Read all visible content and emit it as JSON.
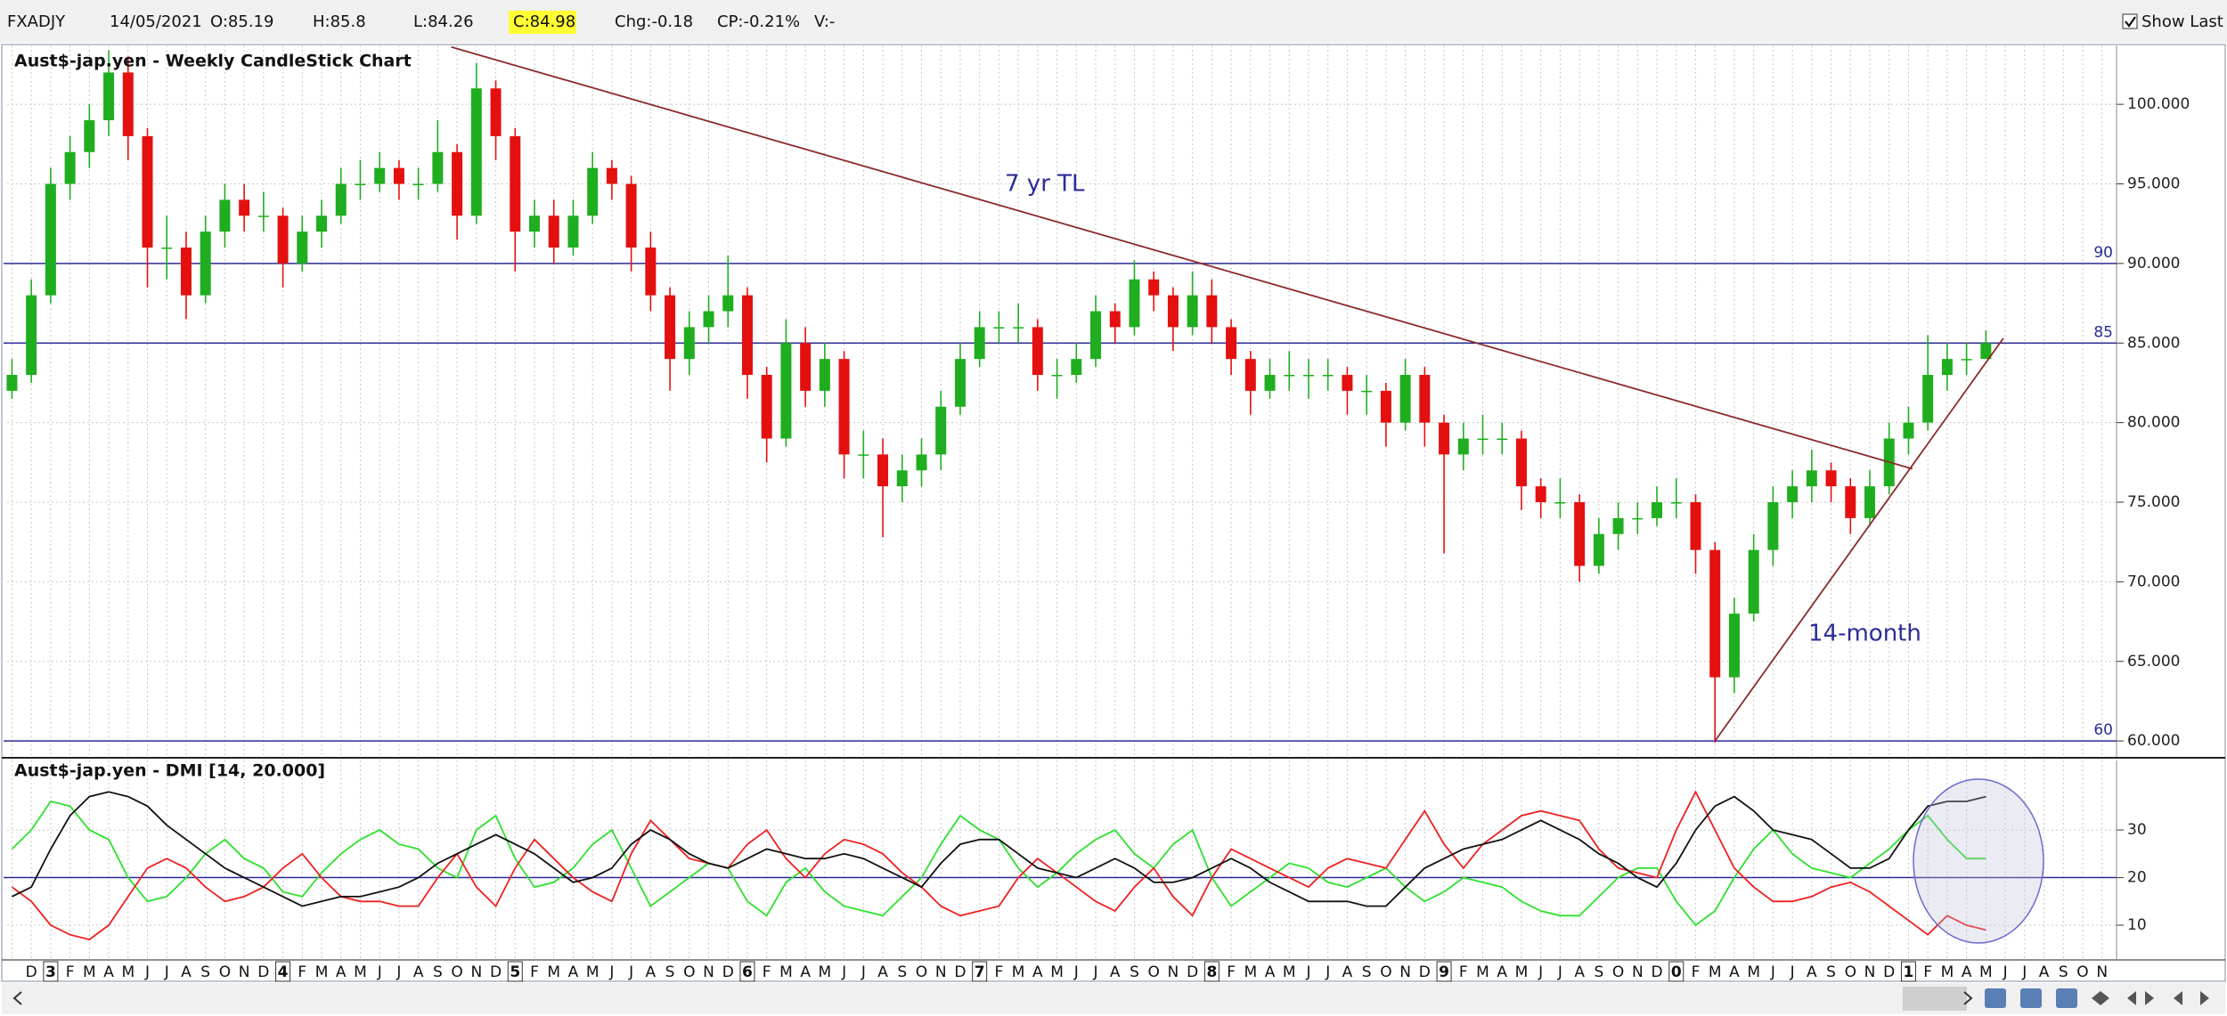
{
  "toolbar": {
    "symbol": "FXADJY",
    "date": "14/05/2021",
    "open": "O:85.19",
    "high": "H:85.8",
    "low": "L:84.26",
    "close": "C:84.98",
    "change": "Chg:-0.18",
    "change_pct": "CP:-0.21%",
    "volume": "V:-",
    "show_last": "Show Last"
  },
  "x_axis": {
    "categories": [
      null,
      "D",
      "3",
      "F",
      "M",
      "A",
      "M",
      "J",
      "J",
      "A",
      "S",
      "O",
      "N",
      "D",
      "4",
      "F",
      "M",
      "A",
      "M",
      "J",
      "J",
      "A",
      "S",
      "O",
      "N",
      "D",
      "5",
      "F",
      "M",
      "A",
      "M",
      "J",
      "J",
      "A",
      "S",
      "O",
      "N",
      "D",
      "6",
      "F",
      "M",
      "A",
      "M",
      "J",
      "J",
      "A",
      "S",
      "O",
      "N",
      "D",
      "7",
      "F",
      "M",
      "A",
      "M",
      "J",
      "J",
      "A",
      "S",
      "O",
      "N",
      "D",
      "8",
      "F",
      "M",
      "A",
      "M",
      "J",
      "J",
      "A",
      "S",
      "O",
      "N",
      "D",
      "9",
      "F",
      "M",
      "A",
      "M",
      "J",
      "J",
      "A",
      "S",
      "O",
      "N",
      "D",
      "0",
      "F",
      "M",
      "A",
      "M",
      "J",
      "J",
      "A",
      "S",
      "O",
      "N",
      "D",
      "1",
      "F",
      "M",
      "A",
      "M",
      "J",
      "J",
      "A",
      "S",
      "O",
      "N"
    ]
  },
  "chart_data": [
    {
      "type": "candlestick",
      "title": "Aust$-jap.yen - Weekly CandleStick Chart",
      "ohlc": [
        [
          82,
          84,
          81.5,
          83
        ],
        [
          83,
          89,
          82.5,
          88
        ],
        [
          88,
          96,
          87.5,
          95
        ],
        [
          95,
          98,
          94,
          97
        ],
        [
          97,
          100,
          96,
          99
        ],
        [
          99,
          103.4,
          98,
          102
        ],
        [
          102,
          103,
          96.5,
          98
        ],
        [
          98,
          98.5,
          88.5,
          91
        ],
        [
          91,
          93,
          89,
          91
        ],
        [
          91,
          92,
          86.5,
          88
        ],
        [
          88,
          93,
          87.5,
          92
        ],
        [
          92,
          95,
          91,
          94
        ],
        [
          94,
          95,
          92,
          93
        ],
        [
          93,
          94.5,
          92,
          93
        ],
        [
          93,
          93.5,
          88.5,
          90
        ],
        [
          90,
          93,
          89.5,
          92
        ],
        [
          92,
          94,
          91,
          93
        ],
        [
          93,
          96,
          92.5,
          95
        ],
        [
          95,
          96.5,
          94,
          95
        ],
        [
          95,
          97,
          94.5,
          96
        ],
        [
          96,
          96.5,
          94,
          95
        ],
        [
          95,
          96,
          94,
          95
        ],
        [
          95,
          99,
          94.5,
          97
        ],
        [
          97,
          97.5,
          91.5,
          93
        ],
        [
          93,
          102.6,
          92.5,
          101
        ],
        [
          101,
          101.5,
          96.5,
          98
        ],
        [
          98,
          98.5,
          89.5,
          92
        ],
        [
          92,
          94,
          91,
          93
        ],
        [
          93,
          94,
          90,
          91
        ],
        [
          91,
          94,
          90.5,
          93
        ],
        [
          93,
          97,
          92.5,
          96
        ],
        [
          96,
          96.5,
          94,
          95
        ],
        [
          95,
          95.5,
          89.5,
          91
        ],
        [
          91,
          92,
          87,
          88
        ],
        [
          88,
          88.5,
          82,
          84
        ],
        [
          84,
          87,
          83,
          86
        ],
        [
          86,
          88,
          85,
          87
        ],
        [
          87,
          90.5,
          86,
          88
        ],
        [
          88,
          88.5,
          81.5,
          83
        ],
        [
          83,
          83.5,
          77.5,
          79
        ],
        [
          79,
          86.5,
          78.5,
          85
        ],
        [
          85,
          86,
          81,
          82
        ],
        [
          82,
          85,
          81,
          84
        ],
        [
          84,
          84.5,
          76.5,
          78
        ],
        [
          78,
          79.5,
          76.5,
          78
        ],
        [
          78,
          79,
          72.8,
          76
        ],
        [
          76,
          78,
          75,
          77
        ],
        [
          77,
          79,
          76,
          78
        ],
        [
          78,
          82,
          77,
          81
        ],
        [
          81,
          85,
          80.5,
          84
        ],
        [
          84,
          87,
          83.5,
          86
        ],
        [
          86,
          87,
          85,
          86
        ],
        [
          86,
          87.5,
          85,
          86
        ],
        [
          86,
          86.5,
          82,
          83
        ],
        [
          83,
          84,
          81.5,
          83
        ],
        [
          83,
          85,
          82.5,
          84
        ],
        [
          84,
          88,
          83.5,
          87
        ],
        [
          87,
          87.5,
          85,
          86
        ],
        [
          86,
          90.2,
          85.5,
          89
        ],
        [
          89,
          89.5,
          87,
          88
        ],
        [
          88,
          88.5,
          84.5,
          86
        ],
        [
          86,
          89.5,
          85.5,
          88
        ],
        [
          88,
          89,
          85,
          86
        ],
        [
          86,
          86.5,
          83,
          84
        ],
        [
          84,
          84.5,
          80.5,
          82
        ],
        [
          82,
          84,
          81.5,
          83
        ],
        [
          83,
          84.5,
          82,
          83
        ],
        [
          83,
          84,
          81.5,
          83
        ],
        [
          83,
          84,
          82,
          83
        ],
        [
          83,
          83.5,
          80.5,
          82
        ],
        [
          82,
          83,
          80.5,
          82
        ],
        [
          82,
          82.5,
          78.5,
          80
        ],
        [
          80,
          84,
          79.5,
          83
        ],
        [
          83,
          83.5,
          78.5,
          80
        ],
        [
          80,
          80.5,
          71.8,
          78
        ],
        [
          78,
          80,
          77,
          79
        ],
        [
          79,
          80.5,
          78,
          79
        ],
        [
          79,
          80,
          78,
          79
        ],
        [
          79,
          79.5,
          74.5,
          76
        ],
        [
          76,
          76.5,
          74,
          75
        ],
        [
          75,
          76.5,
          74,
          75
        ],
        [
          75,
          75.5,
          70,
          71
        ],
        [
          71,
          74,
          70.5,
          73
        ],
        [
          73,
          75,
          72,
          74
        ],
        [
          74,
          75,
          73,
          74
        ],
        [
          74,
          76,
          73.5,
          75
        ],
        [
          75,
          76.5,
          74,
          75
        ],
        [
          75,
          75.5,
          70.5,
          72
        ],
        [
          72,
          72.5,
          59.9,
          64
        ],
        [
          64,
          69,
          63,
          68
        ],
        [
          68,
          73,
          67.5,
          72
        ],
        [
          72,
          76,
          71,
          75
        ],
        [
          75,
          77,
          74,
          76
        ],
        [
          76,
          78.3,
          75,
          77
        ],
        [
          77,
          77.5,
          75,
          76
        ],
        [
          76,
          76.5,
          73,
          74
        ],
        [
          74,
          77,
          73.5,
          76
        ],
        [
          76,
          80,
          75.5,
          79
        ],
        [
          79,
          81,
          78,
          80
        ],
        [
          80,
          85.5,
          79.5,
          83
        ],
        [
          83,
          85,
          82,
          84
        ],
        [
          84,
          85,
          83,
          84
        ],
        [
          84,
          85.8,
          84.2,
          85
        ],
        null,
        null,
        null,
        null,
        null,
        null
      ],
      "up_color": "#1fae1f",
      "down_color": "#e41010",
      "ylim": [
        59,
        103.7
      ],
      "yticks": [
        {
          "value": 100,
          "label": "100.000"
        },
        {
          "value": 95,
          "label": "95.000"
        },
        {
          "value": 90,
          "label": "90.000"
        },
        {
          "value": 85,
          "label": "85.000"
        },
        {
          "value": 80,
          "label": "80.000"
        },
        {
          "value": 75,
          "label": "75.000"
        },
        {
          "value": 70,
          "label": "70.000"
        },
        {
          "value": 65,
          "label": "65.000"
        },
        {
          "value": 60,
          "label": "60.000"
        }
      ],
      "hlines": [
        90,
        85,
        60
      ],
      "hline_color": "#2c2c96",
      "trendlines": [
        {
          "x": [
            22.7,
            98.2
          ],
          "y": [
            103.6,
            77.1
          ]
        },
        {
          "x": [
            88.0,
            102.9
          ],
          "y": [
            60,
            85.3
          ]
        }
      ],
      "trendline_color": "#8b2a2a",
      "annotations": [
        "7 yr TL",
        "14-month"
      ],
      "grid": true
    },
    {
      "type": "line",
      "title": "Aust$-jap.yen - DMI [14, 20.000]",
      "series": [
        {
          "color": "#2ee02e",
          "values": [
            26,
            30,
            36,
            35,
            30,
            28,
            20,
            15,
            16,
            20,
            25,
            28,
            24,
            22,
            17,
            16,
            21,
            25,
            28,
            30,
            27,
            26,
            22,
            20,
            30,
            33,
            24,
            18,
            19,
            22,
            27,
            30,
            22,
            14,
            17,
            20,
            23,
            22,
            15,
            12,
            19,
            22,
            17,
            14,
            13,
            12,
            16,
            20,
            27,
            33,
            30,
            28,
            22,
            18,
            21,
            25,
            28,
            30,
            25,
            22,
            27,
            30,
            20,
            14,
            17,
            20,
            23,
            22,
            19,
            18,
            20,
            22,
            18,
            15,
            17,
            20,
            19,
            18,
            15,
            13,
            12,
            12,
            16,
            20,
            22,
            22,
            15,
            10,
            13,
            20,
            26,
            30,
            25,
            22,
            21,
            20,
            23,
            26,
            30,
            33,
            28,
            24,
            24,
            null,
            null,
            null,
            null,
            null,
            null
          ]
        },
        {
          "color": "#ee2020",
          "values": [
            18,
            15,
            10,
            8,
            7,
            10,
            16,
            22,
            24,
            22,
            18,
            15,
            16,
            18,
            22,
            25,
            20,
            16,
            15,
            15,
            14,
            14,
            20,
            25,
            18,
            14,
            22,
            28,
            24,
            20,
            17,
            15,
            25,
            32,
            28,
            24,
            23,
            22,
            27,
            30,
            24,
            20,
            25,
            28,
            27,
            25,
            21,
            18,
            14,
            12,
            13,
            14,
            20,
            24,
            21,
            18,
            15,
            13,
            18,
            22,
            16,
            12,
            20,
            26,
            24,
            22,
            20,
            18,
            22,
            24,
            23,
            22,
            28,
            34,
            27,
            22,
            27,
            30,
            33,
            34,
            33,
            32,
            26,
            22,
            21,
            20,
            30,
            38,
            30,
            22,
            18,
            15,
            15,
            16,
            18,
            19,
            17,
            14,
            11,
            8,
            12,
            10,
            9,
            null,
            null,
            null,
            null,
            null,
            null
          ]
        },
        {
          "color": "#111111",
          "values": [
            16,
            18,
            26,
            33,
            37,
            38,
            37,
            35,
            31,
            28,
            25,
            22,
            20,
            18,
            16,
            14,
            15,
            16,
            16,
            17,
            18,
            20,
            23,
            25,
            27,
            29,
            27,
            25,
            22,
            19,
            20,
            22,
            27,
            30,
            28,
            25,
            23,
            22,
            24,
            26,
            25,
            24,
            24,
            25,
            24,
            22,
            20,
            18,
            23,
            27,
            28,
            28,
            25,
            22,
            21,
            20,
            22,
            24,
            22,
            19,
            19,
            20,
            22,
            24,
            22,
            19,
            17,
            15,
            15,
            15,
            14,
            14,
            18,
            22,
            24,
            26,
            27,
            28,
            30,
            32,
            30,
            28,
            25,
            23,
            20,
            18,
            23,
            30,
            35,
            37,
            34,
            30,
            29,
            28,
            25,
            22,
            22,
            24,
            30,
            35,
            36,
            36,
            37,
            null,
            null,
            null,
            null,
            null,
            null
          ]
        }
      ],
      "ylim": [
        2.9,
        44.6
      ],
      "yticks": [
        10,
        20,
        30
      ],
      "hlines": [
        20
      ],
      "hline_color": "#2c2c96",
      "grid": true
    }
  ]
}
